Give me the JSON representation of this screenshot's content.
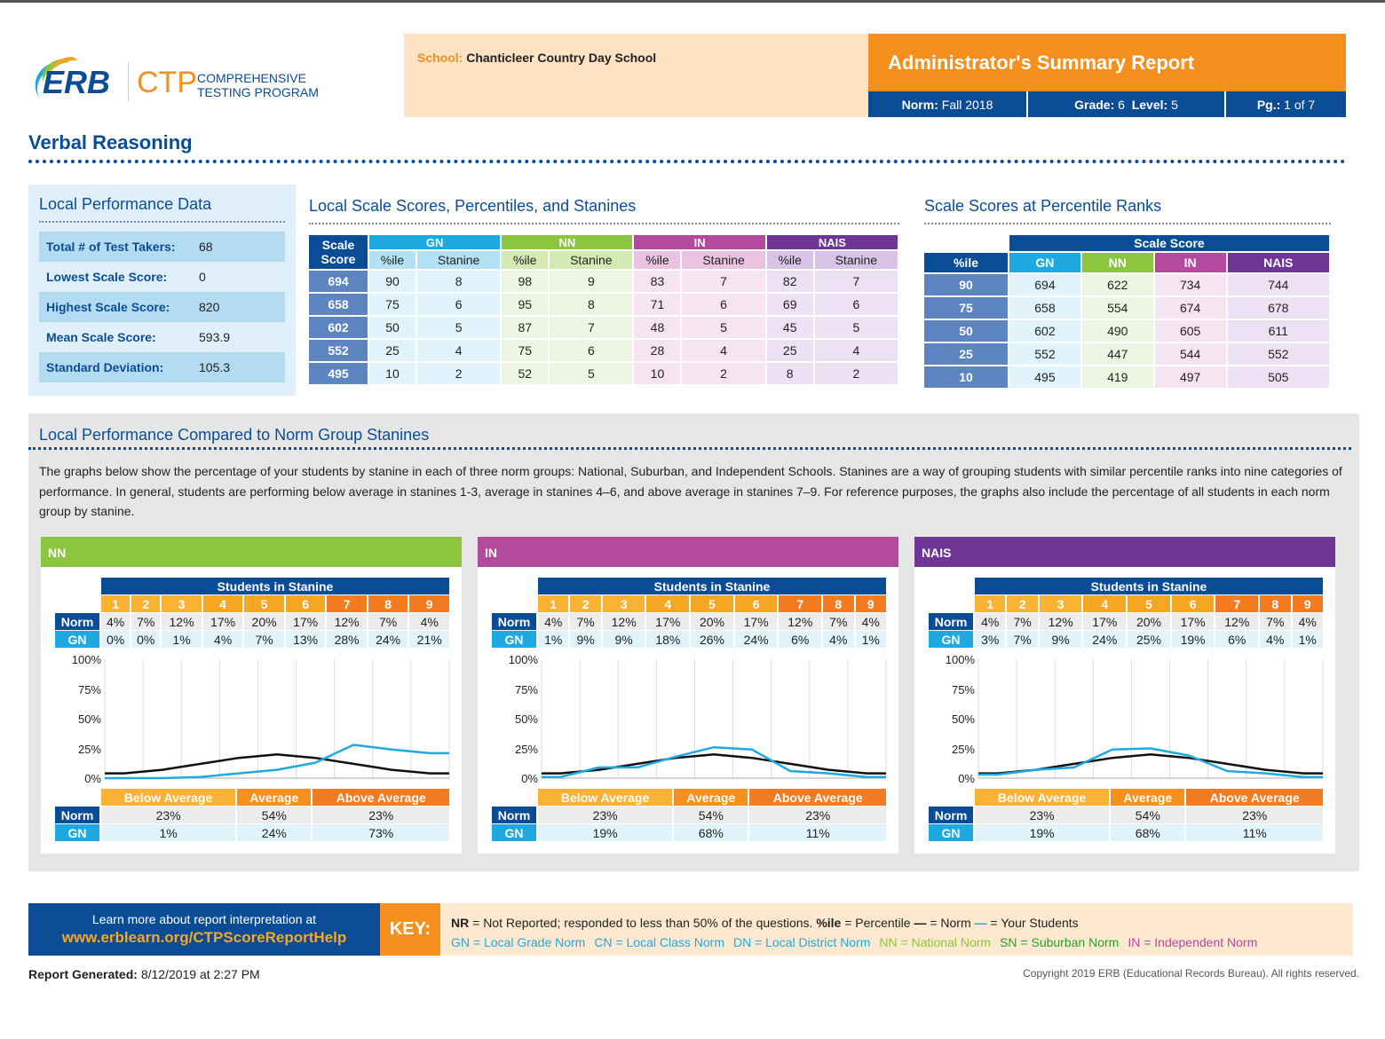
{
  "logo": {
    "erb": "ERB",
    "ctp": "CTP",
    "program_line1": "COMPREHENSIVE",
    "program_line2": "TESTING PROGRAM"
  },
  "header": {
    "school_label": "School:",
    "school_name": "Chanticleer Country Day School",
    "report_title": "Administrator's Summary Report",
    "norm_label": "Norm:",
    "norm_value": "Fall 2018",
    "grade_label": "Grade:",
    "grade_value": "6",
    "level_label": "Level:",
    "level_value": "5",
    "page_label": "Pg.:",
    "page_value": "1 of 7"
  },
  "section_title": "Verbal Reasoning",
  "local_performance": {
    "title": "Local Performance Data",
    "rows": [
      {
        "label": "Total # of Test Takers:",
        "value": "68"
      },
      {
        "label": "Lowest Scale Score:",
        "value": "0"
      },
      {
        "label": "Highest Scale Score:",
        "value": "820"
      },
      {
        "label": "Mean Scale Score:",
        "value": "593.9"
      },
      {
        "label": "Standard Deviation:",
        "value": "105.3"
      }
    ]
  },
  "local_scores": {
    "title": "Local Scale Scores, Percentiles, and Stanines",
    "scale_header": "Scale Score",
    "groups": [
      "GN",
      "NN",
      "IN",
      "NAIS"
    ],
    "pct_label": "%ile",
    "stanine_label": "Stanine",
    "rows": [
      {
        "score": "694",
        "vals": [
          "90",
          "8",
          "98",
          "9",
          "83",
          "7",
          "82",
          "7"
        ]
      },
      {
        "score": "658",
        "vals": [
          "75",
          "6",
          "95",
          "8",
          "71",
          "6",
          "69",
          "6"
        ]
      },
      {
        "score": "602",
        "vals": [
          "50",
          "5",
          "87",
          "7",
          "48",
          "5",
          "45",
          "5"
        ]
      },
      {
        "score": "552",
        "vals": [
          "25",
          "4",
          "75",
          "6",
          "28",
          "4",
          "25",
          "4"
        ]
      },
      {
        "score": "495",
        "vals": [
          "10",
          "2",
          "52",
          "5",
          "10",
          "2",
          "8",
          "2"
        ]
      }
    ]
  },
  "percentile_ranks": {
    "title": "Scale Scores at Percentile Ranks",
    "scale_header": "Scale Score",
    "pct_header": "%ile",
    "groups": [
      "GN",
      "NN",
      "IN",
      "NAIS"
    ],
    "rows": [
      {
        "pct": "90",
        "vals": [
          "694",
          "622",
          "734",
          "744"
        ]
      },
      {
        "pct": "75",
        "vals": [
          "658",
          "554",
          "674",
          "678"
        ]
      },
      {
        "pct": "50",
        "vals": [
          "602",
          "490",
          "605",
          "611"
        ]
      },
      {
        "pct": "25",
        "vals": [
          "552",
          "447",
          "544",
          "552"
        ]
      },
      {
        "pct": "10",
        "vals": [
          "495",
          "419",
          "497",
          "505"
        ]
      }
    ]
  },
  "comparison": {
    "title": "Local Performance Compared to Norm Group Stanines",
    "description": "The graphs below show the percentage of your students by stanine in each of three norm groups: National, Suburban, and Independent Schools. Stanines are a way of grouping students with similar percentile ranks into nine categories of performance. In general, students are performing below average in stanines 1-3, average in stanines 4–6, and above average in stanines 7–9. For reference purposes, the graphs also include the percentage of all students in each norm group by stanine."
  },
  "colors": {
    "nn": "#8cc540",
    "in": "#b44a9d",
    "nais": "#6e3594",
    "norm_line": "#111111",
    "your_line": "#1fa9e1"
  },
  "chart_data": [
    {
      "type": "line",
      "title": "NN",
      "table_title": "Students in Stanine",
      "categories": [
        "1",
        "2",
        "3",
        "4",
        "5",
        "6",
        "7",
        "8",
        "9"
      ],
      "ylim": [
        0,
        100
      ],
      "yticks": [
        "100%",
        "75%",
        "50%",
        "25%",
        "0%"
      ],
      "series": [
        {
          "name": "Norm",
          "values": [
            4,
            7,
            12,
            17,
            20,
            17,
            12,
            7,
            4
          ],
          "labels": [
            "4%",
            "7%",
            "12%",
            "17%",
            "20%",
            "17%",
            "12%",
            "7%",
            "4%"
          ]
        },
        {
          "name": "GN",
          "values": [
            0,
            0,
            1,
            4,
            7,
            13,
            28,
            24,
            21
          ],
          "labels": [
            "0%",
            "0%",
            "1%",
            "4%",
            "7%",
            "13%",
            "28%",
            "24%",
            "21%"
          ]
        }
      ],
      "bands": [
        "Below Average",
        "Average",
        "Above Average"
      ],
      "band_norm": [
        "23%",
        "54%",
        "23%"
      ],
      "band_gn": [
        "1%",
        "24%",
        "73%"
      ]
    },
    {
      "type": "line",
      "title": "IN",
      "table_title": "Students in Stanine",
      "categories": [
        "1",
        "2",
        "3",
        "4",
        "5",
        "6",
        "7",
        "8",
        "9"
      ],
      "ylim": [
        0,
        100
      ],
      "yticks": [
        "100%",
        "75%",
        "50%",
        "25%",
        "0%"
      ],
      "series": [
        {
          "name": "Norm",
          "values": [
            4,
            7,
            12,
            17,
            20,
            17,
            12,
            7,
            4
          ],
          "labels": [
            "4%",
            "7%",
            "12%",
            "17%",
            "20%",
            "17%",
            "12%",
            "7%",
            "4%"
          ]
        },
        {
          "name": "GN",
          "values": [
            1,
            9,
            9,
            18,
            26,
            24,
            6,
            4,
            1
          ],
          "labels": [
            "1%",
            "9%",
            "9%",
            "18%",
            "26%",
            "24%",
            "6%",
            "4%",
            "1%"
          ]
        }
      ],
      "bands": [
        "Below Average",
        "Average",
        "Above Average"
      ],
      "band_norm": [
        "23%",
        "54%",
        "23%"
      ],
      "band_gn": [
        "19%",
        "68%",
        "11%"
      ]
    },
    {
      "type": "line",
      "title": "NAIS",
      "table_title": "Students in Stanine",
      "categories": [
        "1",
        "2",
        "3",
        "4",
        "5",
        "6",
        "7",
        "8",
        "9"
      ],
      "ylim": [
        0,
        100
      ],
      "yticks": [
        "100%",
        "75%",
        "50%",
        "25%",
        "0%"
      ],
      "series": [
        {
          "name": "Norm",
          "values": [
            4,
            7,
            12,
            17,
            20,
            17,
            12,
            7,
            4
          ],
          "labels": [
            "4%",
            "7%",
            "12%",
            "17%",
            "20%",
            "17%",
            "12%",
            "7%",
            "4%"
          ]
        },
        {
          "name": "GN",
          "values": [
            3,
            7,
            9,
            24,
            25,
            19,
            6,
            4,
            1
          ],
          "labels": [
            "3%",
            "7%",
            "9%",
            "24%",
            "25%",
            "19%",
            "6%",
            "4%",
            "1%"
          ]
        }
      ],
      "bands": [
        "Below Average",
        "Average",
        "Above Average"
      ],
      "band_norm": [
        "23%",
        "54%",
        "23%"
      ],
      "band_gn": [
        "19%",
        "68%",
        "11%"
      ]
    }
  ],
  "footer": {
    "learn_line": "Learn more about report interpretation at",
    "url": "www.erblearn.org/CTPScoreReportHelp",
    "key": "KEY:",
    "key_line1": [
      {
        "b": "NR",
        "t": " = Not Reported; responded to less than 50% of the questions.  "
      },
      {
        "b": "%ile",
        "t": " = Percentile  "
      },
      {
        "b": "—",
        "t": " = Norm  "
      },
      {
        "b": "—",
        "t": " = Your Students"
      }
    ],
    "key_line2": [
      "GN = Local Grade Norm",
      "CN = Local Class Norm",
      "DN = Local District Norm",
      "NN = National Norm",
      "SN = Suburban Norm",
      "IN = Independent Norm"
    ],
    "generated_label": "Report Generated:",
    "generated_value": "8/12/2019 at 2:27 PM",
    "copyright": "Copyright 2019 ERB (Educational Records Bureau). All rights reserved."
  }
}
